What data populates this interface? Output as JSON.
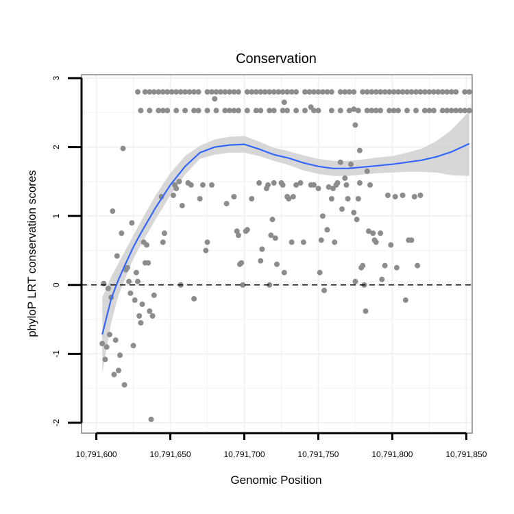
{
  "chart_data": {
    "type": "scatter",
    "title": "Conservation",
    "xlabel": "Genomic Position",
    "ylabel": "phyloP LRT conservation scores",
    "xlim": [
      10791590,
      10791854
    ],
    "ylim": [
      -2.15,
      3.05
    ],
    "x_ticks": [
      10791600,
      10791650,
      10791700,
      10791750,
      10791800,
      10791850
    ],
    "x_tick_labels": [
      "10,791,600",
      "10,791,650",
      "10,791,700",
      "10,791,750",
      "10,791,800",
      "10,791,850"
    ],
    "y_ticks": [
      -2,
      -1,
      0,
      1,
      2,
      3
    ],
    "y_tick_labels": [
      "-2",
      "-1",
      "0",
      "1",
      "2",
      "3"
    ],
    "grid": true,
    "reference_line": {
      "y": 0,
      "style": "dashed",
      "color": "#000000"
    },
    "colors": {
      "points": "#8c8c8c",
      "fit": "#3366ff",
      "band": "#d3d3d3",
      "grid": "#f2f2f2",
      "frame": "#808080"
    },
    "series": [
      {
        "name": "phyloP scores",
        "kind": "points",
        "points": [
          [
            10791604,
            -0.85
          ],
          [
            10791605,
            0.02
          ],
          [
            10791606,
            -1.08
          ],
          [
            10791607,
            -0.9
          ],
          [
            10791608,
            -0.05
          ],
          [
            10791609,
            -0.72
          ],
          [
            10791610,
            -0.18
          ],
          [
            10791611,
            1.07
          ],
          [
            10791612,
            -1.3
          ],
          [
            10791613,
            -0.8
          ],
          [
            10791614,
            0.42
          ],
          [
            10791615,
            -1.24
          ],
          [
            10791616,
            -1.02
          ],
          [
            10791617,
            0.75
          ],
          [
            10791618,
            1.98
          ],
          [
            10791619,
            -1.45
          ],
          [
            10791620,
            0.22
          ],
          [
            10791621,
            0.25
          ],
          [
            10791622,
            0.05
          ],
          [
            10791623,
            -0.12
          ],
          [
            10791624,
            0.9
          ],
          [
            10791625,
            -0.88
          ],
          [
            10791626,
            -0.22
          ],
          [
            10791627,
            0.18
          ],
          [
            10791628,
            0.05
          ],
          [
            10791629,
            -0.45
          ],
          [
            10791630,
            -0.55
          ],
          [
            10791631,
            -0.28
          ],
          [
            10791632,
            0.62
          ],
          [
            10791633,
            0.32
          ],
          [
            10791634,
            0.58
          ],
          [
            10791635,
            0.32
          ],
          [
            10791636,
            -0.38
          ],
          [
            10791637,
            -1.95
          ],
          [
            10791638,
            -0.45
          ],
          [
            10791639,
            -0.15
          ],
          [
            10791644,
            1.28
          ],
          [
            10791645,
            0.62
          ],
          [
            10791646,
            0.75
          ],
          [
            10791652,
            1.3
          ],
          [
            10791653,
            1.45
          ],
          [
            10791654,
            1.4
          ],
          [
            10791656,
            1.5
          ],
          [
            10791657,
            0.0
          ],
          [
            10791658,
            1.15
          ],
          [
            10791662,
            1.48
          ],
          [
            10791664,
            1.45
          ],
          [
            10791666,
            -0.2
          ],
          [
            10791670,
            1.25
          ],
          [
            10791672,
            1.45
          ],
          [
            10791674,
            0.5
          ],
          [
            10791675,
            0.62
          ],
          [
            10791678,
            1.45
          ],
          [
            10791688,
            1.18
          ],
          [
            10791693,
            1.28
          ],
          [
            10791695,
            0.78
          ],
          [
            10791696,
            0.72
          ],
          [
            10791697,
            0.3
          ],
          [
            10791698,
            0.32
          ],
          [
            10791699,
            0.0
          ],
          [
            10791701,
            0.78
          ],
          [
            10791702,
            0.8
          ],
          [
            10791705,
            1.25
          ],
          [
            10791710,
            1.48
          ],
          [
            10791711,
            0.35
          ],
          [
            10791712,
            0.52
          ],
          [
            10791715,
            1.4
          ],
          [
            10791716,
            1.45
          ],
          [
            10791717,
            0.0
          ],
          [
            10791718,
            0.72
          ],
          [
            10791719,
            0.95
          ],
          [
            10791720,
            1.48
          ],
          [
            10791721,
            0.68
          ],
          [
            10791722,
            0.3
          ],
          [
            10791725,
            1.48
          ],
          [
            10791726,
            1.45
          ],
          [
            10791727,
            0.18
          ],
          [
            10791729,
            1.28
          ],
          [
            10791730,
            1.25
          ],
          [
            10791732,
            0.62
          ],
          [
            10791733,
            1.28
          ],
          [
            10791735,
            1.45
          ],
          [
            10791738,
            1.48
          ],
          [
            10791740,
            0.62
          ],
          [
            10791745,
            1.45
          ],
          [
            10791747,
            1.45
          ],
          [
            10791750,
            1.4
          ],
          [
            10791751,
            0.18
          ],
          [
            10791752,
            0.65
          ],
          [
            10791753,
            1.0
          ],
          [
            10791754,
            -0.08
          ],
          [
            10791756,
            0.8
          ],
          [
            10791757,
            1.42
          ],
          [
            10791759,
            1.25
          ],
          [
            10791760,
            1.4
          ],
          [
            10791761,
            0.62
          ],
          [
            10791762,
            1.45
          ],
          [
            10791763,
            1.48
          ],
          [
            10791765,
            1.78
          ],
          [
            10791766,
            1.1
          ],
          [
            10791768,
            1.55
          ],
          [
            10791769,
            1.45
          ],
          [
            10791770,
            1.25
          ],
          [
            10791772,
            1.75
          ],
          [
            10791774,
            1.05
          ],
          [
            10791775,
            0.05
          ],
          [
            10791776,
            0.95
          ],
          [
            10791777,
            1.25
          ],
          [
            10791778,
            1.48
          ],
          [
            10791779,
            0.25
          ],
          [
            10791780,
            0.28
          ],
          [
            10791781,
            0.0
          ],
          [
            10791782,
            -0.38
          ],
          [
            10791783,
            1.65
          ],
          [
            10791784,
            0.78
          ],
          [
            10791785,
            1.45
          ],
          [
            10791787,
            0.75
          ],
          [
            10791788,
            0.65
          ],
          [
            10791789,
            0.62
          ],
          [
            10791792,
            0.75
          ],
          [
            10791793,
            0.08
          ],
          [
            10791795,
            0.28
          ],
          [
            10791797,
            1.3
          ],
          [
            10791799,
            0.58
          ],
          [
            10791802,
            1.28
          ],
          [
            10791803,
            0.25
          ],
          [
            10791807,
            1.3
          ],
          [
            10791809,
            -0.22
          ],
          [
            10791811,
            0.65
          ],
          [
            10791813,
            0.65
          ],
          [
            10791815,
            1.28
          ],
          [
            10791817,
            0.28
          ],
          [
            10791819,
            1.3
          ],
          [
            10791628,
            2.8
          ],
          [
            10791633,
            2.8
          ],
          [
            10791636,
            2.8
          ],
          [
            10791639,
            2.8
          ],
          [
            10791642,
            2.8
          ],
          [
            10791645,
            2.8
          ],
          [
            10791648,
            2.8
          ],
          [
            10791651,
            2.8
          ],
          [
            10791654,
            2.8
          ],
          [
            10791657,
            2.8
          ],
          [
            10791660,
            2.8
          ],
          [
            10791663,
            2.8
          ],
          [
            10791666,
            2.8
          ],
          [
            10791669,
            2.8
          ],
          [
            10791675,
            2.8
          ],
          [
            10791678,
            2.8
          ],
          [
            10791681,
            2.8
          ],
          [
            10791684,
            2.8
          ],
          [
            10791687,
            2.8
          ],
          [
            10791690,
            2.8
          ],
          [
            10791693,
            2.8
          ],
          [
            10791696,
            2.8
          ],
          [
            10791702,
            2.8
          ],
          [
            10791705,
            2.8
          ],
          [
            10791708,
            2.8
          ],
          [
            10791711,
            2.8
          ],
          [
            10791714,
            2.8
          ],
          [
            10791717,
            2.8
          ],
          [
            10791720,
            2.8
          ],
          [
            10791723,
            2.8
          ],
          [
            10791726,
            2.8
          ],
          [
            10791729,
            2.8
          ],
          [
            10791732,
            2.8
          ],
          [
            10791735,
            2.8
          ],
          [
            10791741,
            2.8
          ],
          [
            10791744,
            2.8
          ],
          [
            10791747,
            2.8
          ],
          [
            10791750,
            2.8
          ],
          [
            10791753,
            2.8
          ],
          [
            10791756,
            2.8
          ],
          [
            10791759,
            2.8
          ],
          [
            10791765,
            2.8
          ],
          [
            10791768,
            2.8
          ],
          [
            10791771,
            2.8
          ],
          [
            10791774,
            2.8
          ],
          [
            10791780,
            2.8
          ],
          [
            10791783,
            2.8
          ],
          [
            10791786,
            2.8
          ],
          [
            10791789,
            2.8
          ],
          [
            10791792,
            2.8
          ],
          [
            10791795,
            2.8
          ],
          [
            10791798,
            2.8
          ],
          [
            10791801,
            2.8
          ],
          [
            10791804,
            2.8
          ],
          [
            10791807,
            2.8
          ],
          [
            10791810,
            2.8
          ],
          [
            10791813,
            2.8
          ],
          [
            10791816,
            2.8
          ],
          [
            10791819,
            2.8
          ],
          [
            10791822,
            2.8
          ],
          [
            10791825,
            2.8
          ],
          [
            10791828,
            2.8
          ],
          [
            10791831,
            2.8
          ],
          [
            10791834,
            2.8
          ],
          [
            10791837,
            2.8
          ],
          [
            10791840,
            2.8
          ],
          [
            10791843,
            2.8
          ],
          [
            10791849,
            2.8
          ],
          [
            10791852,
            2.8
          ],
          [
            10791630,
            2.53
          ],
          [
            10791636,
            2.53
          ],
          [
            10791642,
            2.53
          ],
          [
            10791645,
            2.53
          ],
          [
            10791648,
            2.53
          ],
          [
            10791654,
            2.53
          ],
          [
            10791660,
            2.53
          ],
          [
            10791666,
            2.53
          ],
          [
            10791669,
            2.53
          ],
          [
            10791675,
            2.53
          ],
          [
            10791681,
            2.53
          ],
          [
            10791687,
            2.53
          ],
          [
            10791690,
            2.53
          ],
          [
            10791693,
            2.53
          ],
          [
            10791696,
            2.53
          ],
          [
            10791702,
            2.53
          ],
          [
            10791708,
            2.53
          ],
          [
            10791711,
            2.53
          ],
          [
            10791717,
            2.53
          ],
          [
            10791720,
            2.53
          ],
          [
            10791726,
            2.53
          ],
          [
            10791729,
            2.53
          ],
          [
            10791735,
            2.53
          ],
          [
            10791741,
            2.53
          ],
          [
            10791747,
            2.53
          ],
          [
            10791750,
            2.53
          ],
          [
            10791759,
            2.53
          ],
          [
            10791765,
            2.53
          ],
          [
            10791771,
            2.53
          ],
          [
            10791777,
            2.53
          ],
          [
            10791783,
            2.53
          ],
          [
            10791786,
            2.53
          ],
          [
            10791789,
            2.53
          ],
          [
            10791792,
            2.53
          ],
          [
            10791798,
            2.53
          ],
          [
            10791801,
            2.53
          ],
          [
            10791804,
            2.53
          ],
          [
            10791810,
            2.53
          ],
          [
            10791816,
            2.53
          ],
          [
            10791822,
            2.53
          ],
          [
            10791825,
            2.53
          ],
          [
            10791828,
            2.53
          ],
          [
            10791834,
            2.53
          ],
          [
            10791837,
            2.53
          ],
          [
            10791840,
            2.53
          ],
          [
            10791843,
            2.53
          ],
          [
            10791846,
            2.53
          ],
          [
            10791849,
            2.53
          ],
          [
            10791852,
            2.53
          ],
          [
            10791680,
            2.7
          ],
          [
            10791727,
            2.65
          ],
          [
            10791745,
            2.58
          ],
          [
            10791774,
            2.55
          ],
          [
            10791775,
            2.32
          ],
          [
            10791778,
            1.95
          ]
        ]
      },
      {
        "name": "smoothed fit",
        "kind": "line",
        "x": [
          10791604,
          10791610,
          10791615,
          10791620,
          10791625,
          10791630,
          10791640,
          10791650,
          10791660,
          10791670,
          10791680,
          10791690,
          10791700,
          10791710,
          10791720,
          10791730,
          10791740,
          10791750,
          10791760,
          10791770,
          10791780,
          10791790,
          10791800,
          10791810,
          10791820,
          10791830,
          10791840,
          10791852
        ],
        "y": [
          -0.72,
          -0.2,
          0.08,
          0.32,
          0.55,
          0.75,
          1.12,
          1.45,
          1.72,
          1.92,
          2.0,
          2.03,
          2.04,
          1.97,
          1.89,
          1.84,
          1.77,
          1.72,
          1.69,
          1.69,
          1.71,
          1.73,
          1.75,
          1.78,
          1.81,
          1.86,
          1.93,
          2.05
        ],
        "lower": [
          -1.28,
          -0.55,
          -0.15,
          0.12,
          0.38,
          0.58,
          0.95,
          1.3,
          1.6,
          1.83,
          1.89,
          1.92,
          1.92,
          1.87,
          1.8,
          1.74,
          1.66,
          1.61,
          1.58,
          1.58,
          1.6,
          1.62,
          1.63,
          1.64,
          1.64,
          1.63,
          1.59,
          1.58
        ],
        "upper": [
          -0.18,
          0.12,
          0.32,
          0.52,
          0.72,
          0.92,
          1.3,
          1.62,
          1.87,
          2.02,
          2.11,
          2.15,
          2.16,
          2.08,
          1.99,
          1.94,
          1.88,
          1.83,
          1.8,
          1.8,
          1.82,
          1.85,
          1.87,
          1.92,
          1.98,
          2.09,
          2.25,
          2.52
        ]
      }
    ]
  }
}
